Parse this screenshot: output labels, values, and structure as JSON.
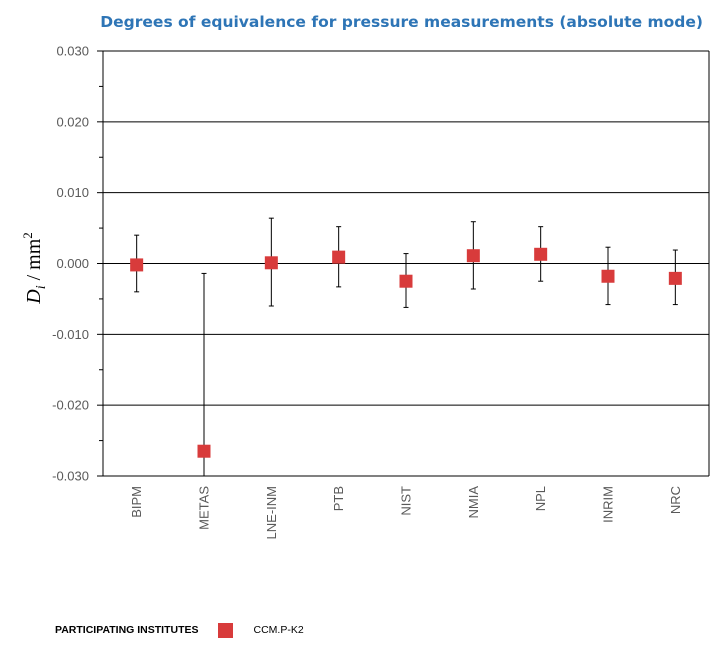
{
  "chart_data": {
    "type": "scatter",
    "title": "Degrees of equivalence for pressure measurements (absolute mode)",
    "ylabel": {
      "symbol": "D",
      "subscript": "i",
      "rest": " / mm",
      "superscript": "2"
    },
    "xlabel": "",
    "categories": [
      "BIPM",
      "METAS",
      "LNE-INM",
      "PTB",
      "NIST",
      "NMIA",
      "NPL",
      "INRIM",
      "NRC"
    ],
    "ylim": [
      -0.03,
      0.03
    ],
    "yticks": [
      0.03,
      0.02,
      0.01,
      0.0,
      -0.01,
      -0.02,
      -0.03
    ],
    "ytick_labels": [
      "0.030",
      "0.020",
      "0.010",
      "0.000",
      "-0.010",
      "-0.020",
      "-0.030"
    ],
    "series": [
      {
        "name": "CCM.P-K2",
        "values": [
          -0.0002,
          -0.0265,
          0.0001,
          0.0009,
          -0.0025,
          0.0011,
          0.0013,
          -0.0018,
          -0.0021
        ],
        "error_upper": [
          0.004,
          -0.0014,
          0.0064,
          0.0052,
          0.0014,
          0.0059,
          0.0052,
          0.0023,
          0.0019
        ],
        "error_lower": [
          -0.004,
          -0.03,
          -0.006,
          -0.0033,
          -0.0062,
          -0.0036,
          -0.0025,
          -0.0058,
          -0.0058
        ]
      }
    ],
    "grid": "horizontal major gridlines",
    "legend_position": "bottom-left",
    "colors": {
      "marker": "#d83b3b",
      "title": "#2e75b6",
      "axis": "#000000",
      "tick_label": "#595959"
    }
  },
  "legend": {
    "title": "PARTICIPATING INSTITUTES",
    "label": "CCM.P-K2"
  }
}
